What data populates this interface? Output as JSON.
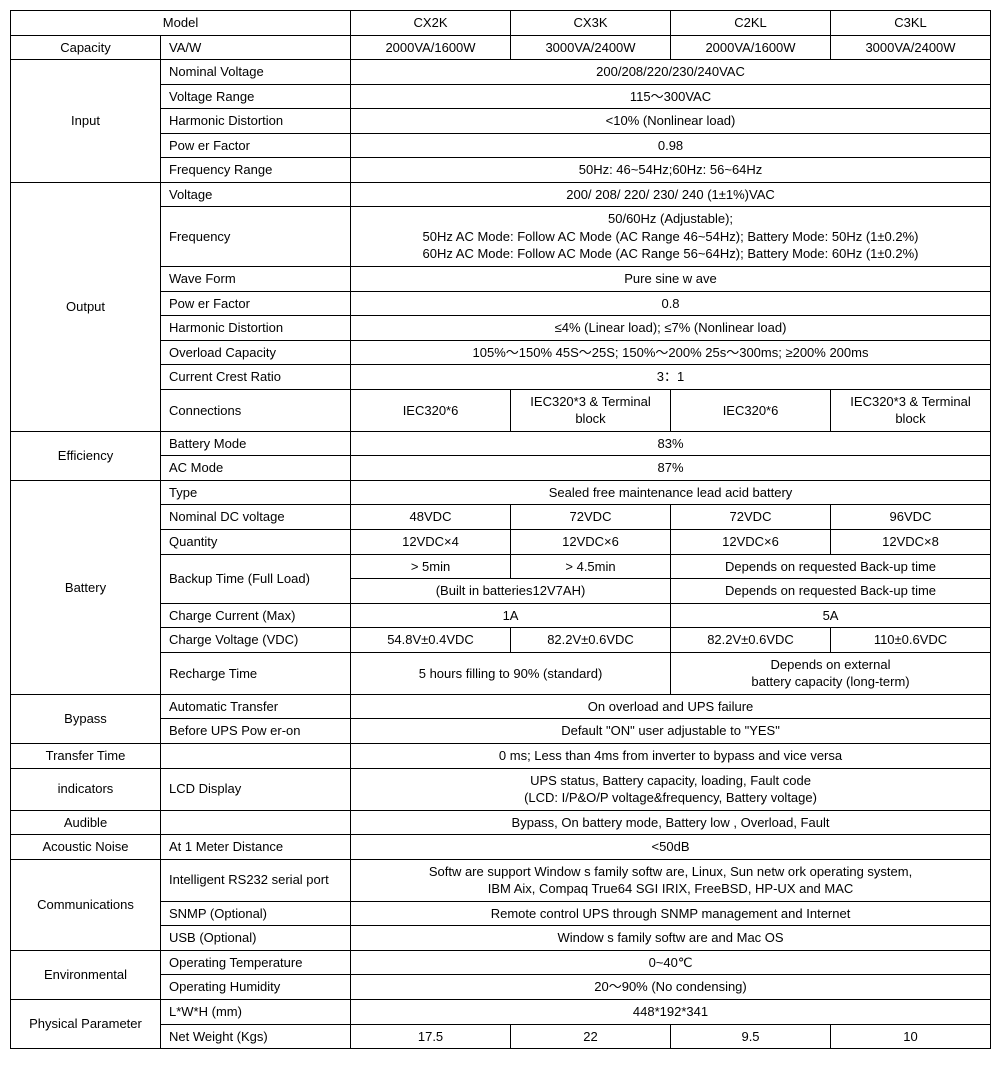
{
  "hdr": {
    "model": "Model",
    "m1": "CX2K",
    "m2": "CX3K",
    "m3": "C2KL",
    "m4": "C3KL"
  },
  "cap": {
    "lbl": "Capacity",
    "sub": "VA/W",
    "v1": "2000VA/1600W",
    "v2": "3000VA/2400W",
    "v3": "2000VA/1600W",
    "v4": "3000VA/2400W"
  },
  "in": {
    "lbl": "Input",
    "nv": {
      "lbl": "Nominal Voltage",
      "v": "200/208/220/230/240VAC"
    },
    "vr": {
      "lbl": "Voltage Range",
      "v": "115～300VAC"
    },
    "hd": {
      "lbl": "Harmonic Distortion",
      "v": "<10% (Nonlinear load)"
    },
    "pf": {
      "lbl": "Pow er Factor",
      "v": "0.98"
    },
    "fr": {
      "lbl": "Frequency Range",
      "v": "50Hz: 46~54Hz;60Hz: 56~64Hz"
    }
  },
  "out": {
    "lbl": "Output",
    "v": {
      "lbl": "Voltage",
      "v": "200/ 208/ 220/ 230/ 240 (1±1%)VAC"
    },
    "f": {
      "lbl": "Frequency",
      "l1": "50/60Hz (Adjustable);",
      "l2": "50Hz AC Mode: Follow AC Mode (AC Range 46~54Hz); Battery Mode: 50Hz (1±0.2%)",
      "l3": "60Hz AC Mode: Follow AC Mode (AC Range 56~64Hz); Battery Mode: 60Hz (1±0.2%)"
    },
    "wf": {
      "lbl": "Wave Form",
      "v": "Pure sine w ave"
    },
    "pf": {
      "lbl": "Pow er Factor",
      "v": "0.8"
    },
    "hd": {
      "lbl": "Harmonic Distortion",
      "v": "≤4% (Linear load); ≤7% (Nonlinear load)"
    },
    "oc": {
      "lbl": "Overload Capacity",
      "v": "105%～150%  45S～25S; 150%～200%  25s～300ms; ≥200% 200ms"
    },
    "cr": {
      "lbl": "Current Crest Ratio",
      "v": "3：1"
    },
    "cn": {
      "lbl": "Connections",
      "v1": "IEC320*6",
      "v2": "IEC320*3 &    Terminal block",
      "v3": "IEC320*6",
      "v4": "IEC320*3 &    Terminal block"
    }
  },
  "eff": {
    "lbl": "Efficiency",
    "bm": {
      "lbl": "Battery Mode",
      "v": "83%"
    },
    "am": {
      "lbl": "AC Mode",
      "v": "87%"
    }
  },
  "bat": {
    "lbl": "Battery",
    "ty": {
      "lbl": "Type",
      "v": "Sealed free maintenance lead acid battery"
    },
    "nd": {
      "lbl": "Nominal DC voltage",
      "v1": "48VDC",
      "v2": "72VDC",
      "v3": "72VDC",
      "v4": "96VDC"
    },
    "qt": {
      "lbl": "Quantity",
      "v1": "12VDC×4",
      "v2": "12VDC×6",
      "v3": "12VDC×6",
      "v4": "12VDC×8"
    },
    "bt": {
      "lbl": "Backup Time (Full Load)",
      "v1": "> 5min",
      "v2": "> 4.5min",
      "v34": "Depends on requested  Back-up time",
      "b12": "(Built in batteries12V7AH)",
      "b34": "Depends on requested  Back-up time"
    },
    "cc": {
      "lbl": "Charge Current (Max)",
      "v12": "1A",
      "v34": "5A"
    },
    "cv": {
      "lbl": "Charge Voltage (VDC)",
      "v1": "54.8V±0.4VDC",
      "v2": "82.2V±0.6VDC",
      "v3": "82.2V±0.6VDC",
      "v4": "110±0.6VDC"
    },
    "rt": {
      "lbl": "Recharge Time",
      "v12": "5 hours filling to 90% (standard)",
      "v34a": "Depends on external",
      "v34b": "battery capacity (long-term)"
    }
  },
  "byp": {
    "lbl": "Bypass",
    "at": {
      "lbl": "Automatic Transfer",
      "v": "On overload and UPS failure"
    },
    "bf": {
      "lbl": "Before UPS Pow er-on",
      "v": "Default \"ON\" user adjustable to \"YES\""
    }
  },
  "tt": {
    "lbl": "Transfer Time",
    "v": "0 ms; Less than 4ms from inverter to bypass and vice versa"
  },
  "ind": {
    "lbl": "indicators",
    "sub": "LCD Display",
    "l1": "UPS status, Battery capacity, loading, Fault code",
    "l2": "(LCD: I/P&O/P voltage&frequency, Battery voltage)"
  },
  "aud": {
    "lbl": "Audible",
    "v": "Bypass, On battery mode, Battery low , Overload, Fault"
  },
  "an": {
    "lbl": "Acoustic Noise",
    "sub": "At 1 Meter Distance",
    "v": "<50dB"
  },
  "com": {
    "lbl": "Communications",
    "rs": {
      "lbl": "Intelligent RS232  serial port",
      "l1": "Softw are support Window s family softw are, Linux, Sun netw ork operating system,",
      "l2": "IBM Aix, Compaq True64 SGI IRIX, FreeBSD, HP-UX and MAC"
    },
    "sn": {
      "lbl": "SNMP (Optional)",
      "v": "Remote control UPS through SNMP management and Internet"
    },
    "us": {
      "lbl": "USB (Optional)",
      "v": "Window s family softw are and Mac OS"
    }
  },
  "env": {
    "lbl": "Environmental",
    "ot": {
      "lbl": "Operating Temperature",
      "v": "0~40℃"
    },
    "oh": {
      "lbl": "Operating Humidity",
      "v": "20～90% (No condensing)"
    }
  },
  "phy": {
    "lbl": "Physical Parameter",
    "lw": {
      "lbl": "L*W*H (mm)",
      "v": "448*192*341"
    },
    "nw": {
      "lbl": "Net Weight (Kgs)",
      "v1": "17.5",
      "v2": "22",
      "v3": "9.5",
      "v4": "10"
    }
  }
}
